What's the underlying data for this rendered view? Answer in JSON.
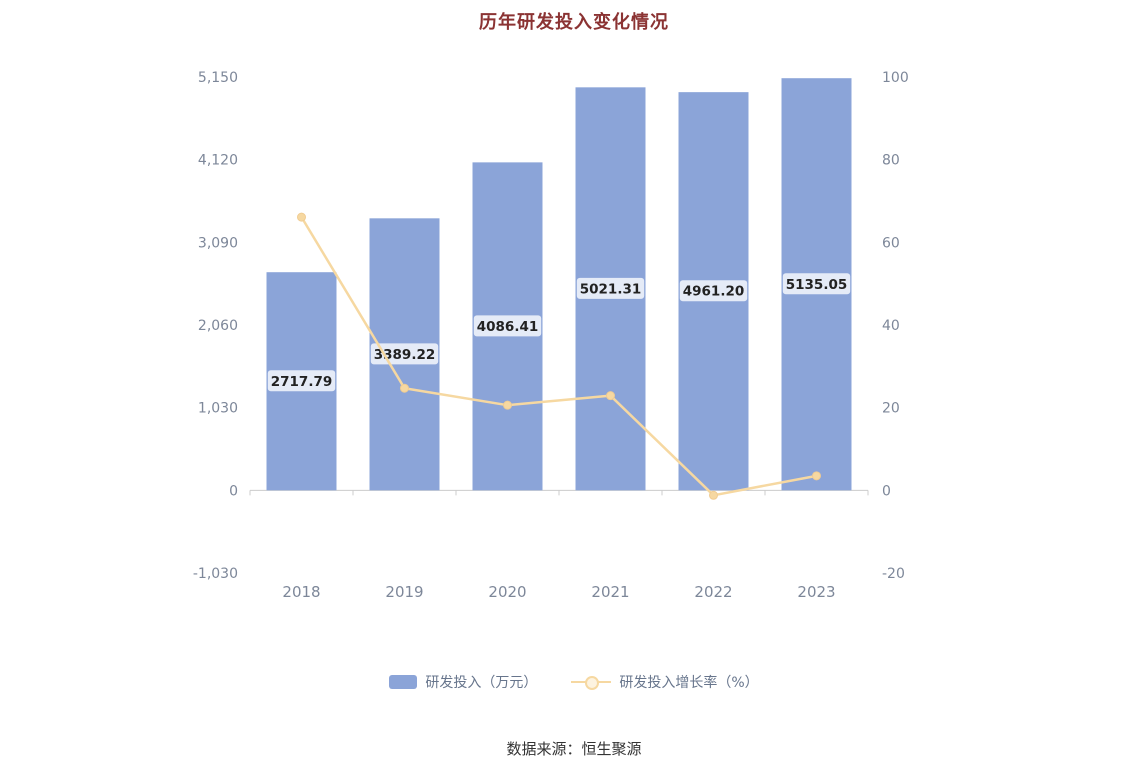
{
  "title": "历年研发投入变化情况",
  "source": "数据来源：恒生聚源",
  "legend": [
    {
      "label": "研发投入（万元）"
    },
    {
      "label": "研发投入增长率（%）"
    }
  ],
  "colors": {
    "bar": "#8ba4d8",
    "line": "#f6d8a1",
    "line_marker_edge": "#f0cc92",
    "title": "#8b3333",
    "axis": "#cccccc",
    "tick_text": "#7d8799",
    "value_label_text": "#222222"
  },
  "chart_data": {
    "type": "bar",
    "title": "历年研发投入变化情况",
    "categories": [
      "2018",
      "2019",
      "2020",
      "2021",
      "2022",
      "2023"
    ],
    "series": [
      {
        "name": "研发投入（万元）",
        "type": "bar",
        "axis": "left",
        "values": [
          2717.79,
          3389.22,
          4086.41,
          5021.31,
          4961.2,
          5135.05
        ],
        "labels": [
          "2717.79",
          "3389.22",
          "4086.41",
          "5021.31",
          "4961.20",
          "5135.05"
        ]
      },
      {
        "name": "研发投入增长率（%）",
        "type": "line",
        "axis": "right",
        "values": [
          66.1,
          24.7,
          20.6,
          22.9,
          -1.2,
          3.5
        ]
      }
    ],
    "left_axis": {
      "ticks": [
        "5,150",
        "4,120",
        "3,090",
        "2,060",
        "1,030",
        "0",
        "-1,030"
      ],
      "min": -1030,
      "max": 5150
    },
    "right_axis": {
      "ticks": [
        "100",
        "80",
        "60",
        "40",
        "20",
        "0",
        "-20"
      ],
      "min": -20,
      "max": 100
    },
    "legend_position": "bottom",
    "grid": false
  }
}
